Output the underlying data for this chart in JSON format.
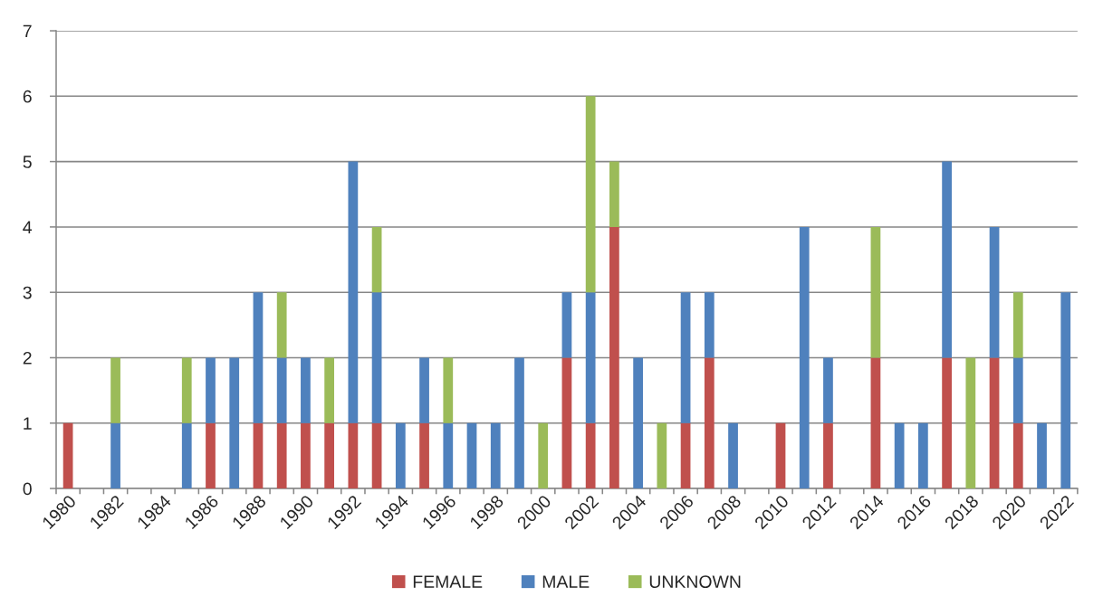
{
  "chart_data": {
    "type": "bar",
    "stacked": true,
    "categories": [
      "1980",
      null,
      "1982",
      null,
      "1984",
      null,
      "1986",
      null,
      "1988",
      null,
      "1990",
      null,
      "1992",
      null,
      "1994",
      null,
      "1996",
      null,
      "1998",
      null,
      "2000",
      null,
      "2002",
      null,
      "2004",
      null,
      "2006",
      null,
      "2008",
      null,
      "2010",
      null,
      "2012",
      null,
      "2014",
      null,
      "2016",
      null,
      "2018",
      null,
      "2020",
      null,
      "2022"
    ],
    "series": [
      {
        "name": "FEMALE",
        "color": "#c0504d",
        "values": [
          1,
          0,
          0,
          0,
          0,
          0,
          1,
          0,
          1,
          1,
          1,
          1,
          1,
          1,
          0,
          1,
          0,
          0,
          0,
          0,
          0,
          2,
          1,
          4,
          0,
          0,
          1,
          2,
          0,
          0,
          1,
          0,
          1,
          0,
          2,
          0,
          0,
          2,
          0,
          2,
          1,
          0,
          0
        ]
      },
      {
        "name": "MALE",
        "color": "#4f81bd",
        "values": [
          0,
          0,
          1,
          0,
          0,
          1,
          1,
          2,
          2,
          1,
          1,
          0,
          4,
          2,
          1,
          1,
          1,
          1,
          1,
          2,
          0,
          1,
          2,
          0,
          2,
          0,
          2,
          1,
          1,
          0,
          0,
          4,
          1,
          0,
          0,
          1,
          1,
          3,
          0,
          2,
          1,
          1,
          3
        ]
      },
      {
        "name": "UNKNOWN",
        "color": "#9bbb59",
        "values": [
          0,
          0,
          1,
          0,
          0,
          1,
          0,
          0,
          0,
          1,
          0,
          1,
          0,
          1,
          0,
          0,
          1,
          0,
          0,
          0,
          1,
          0,
          3,
          1,
          0,
          1,
          0,
          0,
          0,
          0,
          0,
          0,
          0,
          0,
          2,
          0,
          0,
          0,
          2,
          0,
          1,
          0,
          0
        ]
      }
    ],
    "ylim": [
      0,
      7
    ],
    "yticks": [
      0,
      1,
      2,
      3,
      4,
      5,
      6,
      7
    ],
    "grid": "y",
    "legend": "bottom"
  }
}
